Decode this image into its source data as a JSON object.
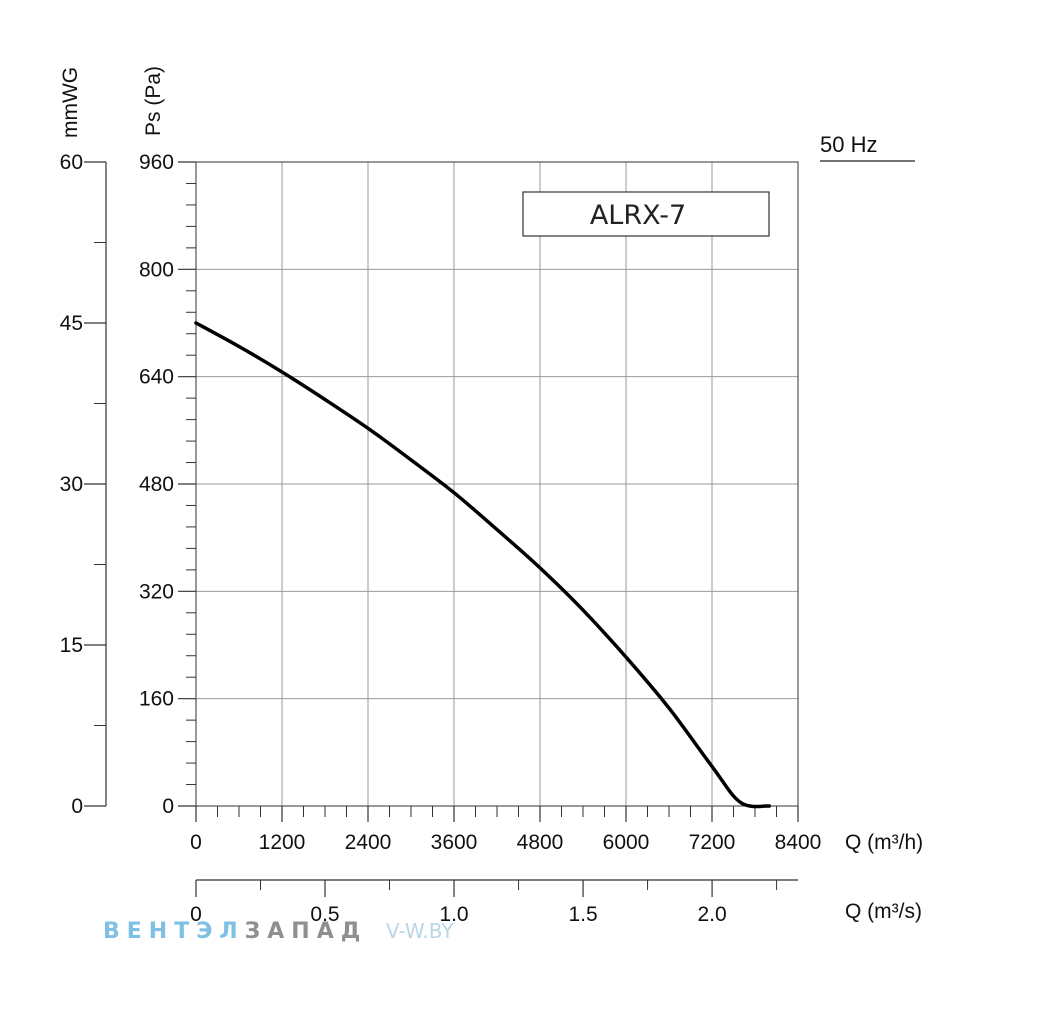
{
  "chart_data": {
    "type": "line",
    "frequency_label": "50 Hz",
    "model_label": "ALRX-7",
    "y_axis": {
      "label": "Ps (Pa)",
      "range": [
        0,
        960
      ],
      "ticks": [
        "0",
        "160",
        "320",
        "480",
        "640",
        "800",
        "960"
      ]
    },
    "y_axis_secondary": {
      "label": "mmWG",
      "range": [
        0,
        60
      ],
      "ticks": [
        "0",
        "15",
        "30",
        "45",
        "60"
      ]
    },
    "x_axis": {
      "label": "Q (m³/h)",
      "range": [
        0,
        8400
      ],
      "ticks": [
        "0",
        "1200",
        "2400",
        "3600",
        "4800",
        "6000",
        "7200",
        "8400"
      ]
    },
    "x_axis_secondary": {
      "label": "Q (m³/s)",
      "range": [
        0,
        2.333
      ],
      "ticks": [
        "0",
        "0.5",
        "1.0",
        "1.5",
        "2.0"
      ]
    },
    "grid": true,
    "series": [
      {
        "x": [
          0,
          600,
          1200,
          1800,
          2400,
          3000,
          3600,
          4200,
          4800,
          5400,
          6000,
          6600,
          7200,
          7600,
          8000
        ],
        "y": [
          720,
          685,
          647,
          606,
          563,
          516,
          467,
          412,
          355,
          292,
          222,
          146,
          59,
          5,
          0
        ]
      }
    ]
  },
  "watermark": {
    "part1": "ВЕНТЭЛ",
    "part2": "ЗАПАД",
    "site": "V-W.BY"
  }
}
